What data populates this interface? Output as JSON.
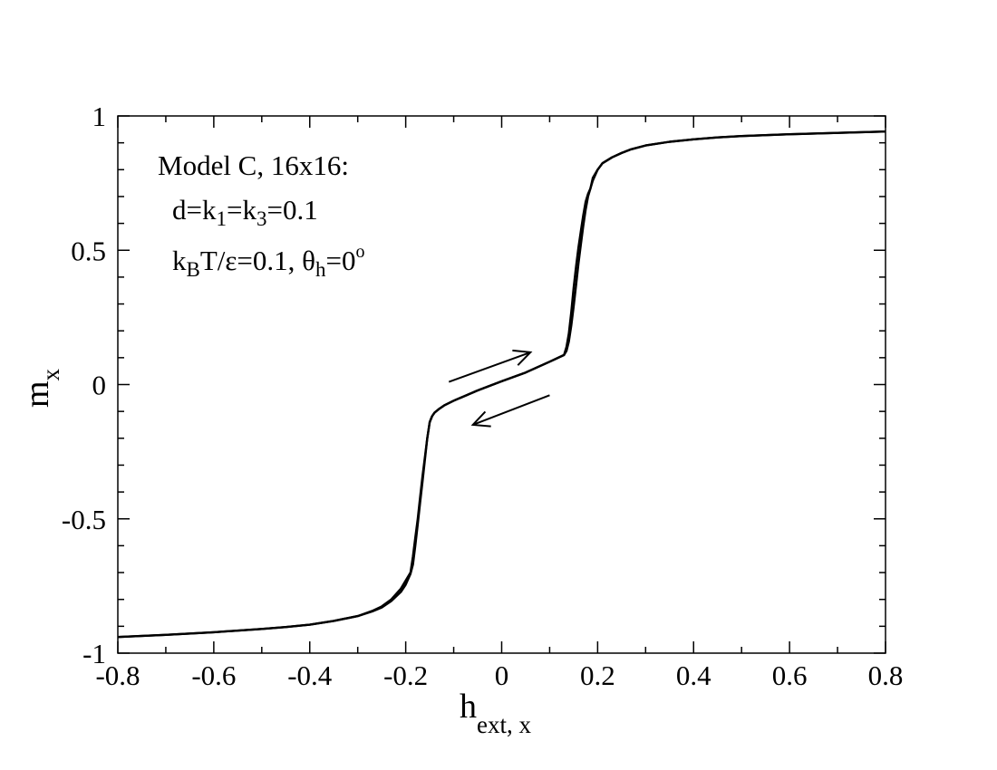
{
  "chart_data": {
    "type": "line",
    "xlabel": {
      "main": "h",
      "sub": "ext, x"
    },
    "ylabel": {
      "main": "m",
      "sub": "x"
    },
    "xlim": [
      -0.8,
      0.8
    ],
    "ylim": [
      -1,
      1
    ],
    "x_ticks": [
      -0.8,
      -0.6,
      -0.4,
      -0.2,
      0,
      0.2,
      0.4,
      0.6,
      0.8
    ],
    "x_tick_labels": [
      "-0.8",
      "-0.6",
      "-0.4",
      "-0.2",
      "0",
      "0.2",
      "0.4",
      "0.6",
      "0.8"
    ],
    "y_ticks": [
      -1,
      -0.5,
      0,
      0.5,
      1
    ],
    "y_tick_labels": [
      "-1",
      "-0.5",
      "0",
      "0.5",
      "1"
    ],
    "grid": false,
    "annotation": {
      "line1": "Model C, 16x16:",
      "line2": {
        "a": "d=k",
        "s1": "1",
        "b": "=k",
        "s2": "3",
        "c": "=0.1"
      },
      "line3": {
        "a": "k",
        "s1": "B",
        "b": "T/ε=0.1, θ",
        "s2": "h",
        "c": "=0",
        "sup": "o"
      }
    },
    "arrows": [
      {
        "direction": "increasing field",
        "from": [
          -0.11,
          0.01
        ],
        "to": [
          0.06,
          0.12
        ]
      },
      {
        "direction": "decreasing field",
        "from": [
          0.1,
          -0.04
        ],
        "to": [
          -0.06,
          -0.15
        ]
      }
    ],
    "series": [
      {
        "x": [
          -0.8,
          -0.7,
          -0.6,
          -0.5,
          -0.45,
          -0.4,
          -0.35,
          -0.3,
          -0.27,
          -0.25,
          -0.23,
          -0.21,
          -0.2,
          -0.19,
          -0.185,
          -0.18,
          -0.175,
          -0.17,
          -0.165,
          -0.16,
          -0.155,
          -0.15,
          -0.145,
          -0.14,
          -0.13,
          -0.12,
          -0.1,
          -0.05,
          0,
          0.05,
          0.1,
          0.13,
          0.135,
          0.14,
          0.145,
          0.15,
          0.155,
          0.16,
          0.165,
          0.17,
          0.175,
          0.18,
          0.185,
          0.19,
          0.2,
          0.21,
          0.23,
          0.25,
          0.27,
          0.3,
          0.35,
          0.4,
          0.45,
          0.5,
          0.6,
          0.7,
          0.8
        ],
        "y": [
          -0.94,
          -0.932,
          -0.922,
          -0.91,
          -0.903,
          -0.894,
          -0.88,
          -0.862,
          -0.843,
          -0.826,
          -0.8,
          -0.76,
          -0.73,
          -0.7,
          -0.64,
          -0.57,
          -0.5,
          -0.42,
          -0.34,
          -0.27,
          -0.2,
          -0.14,
          -0.118,
          -0.105,
          -0.09,
          -0.078,
          -0.06,
          -0.022,
          0.012,
          0.045,
          0.085,
          0.11,
          0.14,
          0.19,
          0.27,
          0.36,
          0.44,
          0.51,
          0.57,
          0.63,
          0.68,
          0.71,
          0.73,
          0.77,
          0.8,
          0.824,
          0.846,
          0.862,
          0.876,
          0.89,
          0.904,
          0.913,
          0.92,
          0.925,
          0.932,
          0.937,
          0.942
        ]
      },
      {
        "x": [
          -0.8,
          -0.7,
          -0.6,
          -0.5,
          -0.45,
          -0.4,
          -0.35,
          -0.3,
          -0.27,
          -0.25,
          -0.23,
          -0.21,
          -0.2,
          -0.19,
          -0.185,
          -0.18,
          -0.175,
          -0.17,
          -0.165,
          -0.16,
          -0.155,
          -0.15,
          -0.145,
          -0.14,
          -0.13,
          -0.12,
          -0.1,
          -0.05,
          0,
          0.05,
          0.1,
          0.13,
          0.135,
          0.14,
          0.145,
          0.15,
          0.155,
          0.16,
          0.165,
          0.17,
          0.175,
          0.18,
          0.185,
          0.19,
          0.2,
          0.21,
          0.23,
          0.25,
          0.27,
          0.3,
          0.35,
          0.4,
          0.45,
          0.5,
          0.6,
          0.7,
          0.8
        ],
        "y": [
          -0.94,
          -0.932,
          -0.922,
          -0.91,
          -0.903,
          -0.894,
          -0.88,
          -0.862,
          -0.845,
          -0.83,
          -0.806,
          -0.772,
          -0.745,
          -0.705,
          -0.67,
          -0.6,
          -0.52,
          -0.44,
          -0.36,
          -0.28,
          -0.2,
          -0.14,
          -0.118,
          -0.105,
          -0.09,
          -0.078,
          -0.06,
          -0.022,
          0.012,
          0.045,
          0.085,
          0.11,
          0.125,
          0.16,
          0.22,
          0.29,
          0.37,
          0.45,
          0.52,
          0.59,
          0.65,
          0.7,
          0.73,
          0.76,
          0.8,
          0.824,
          0.846,
          0.862,
          0.876,
          0.89,
          0.904,
          0.913,
          0.92,
          0.925,
          0.932,
          0.937,
          0.942
        ]
      }
    ]
  }
}
